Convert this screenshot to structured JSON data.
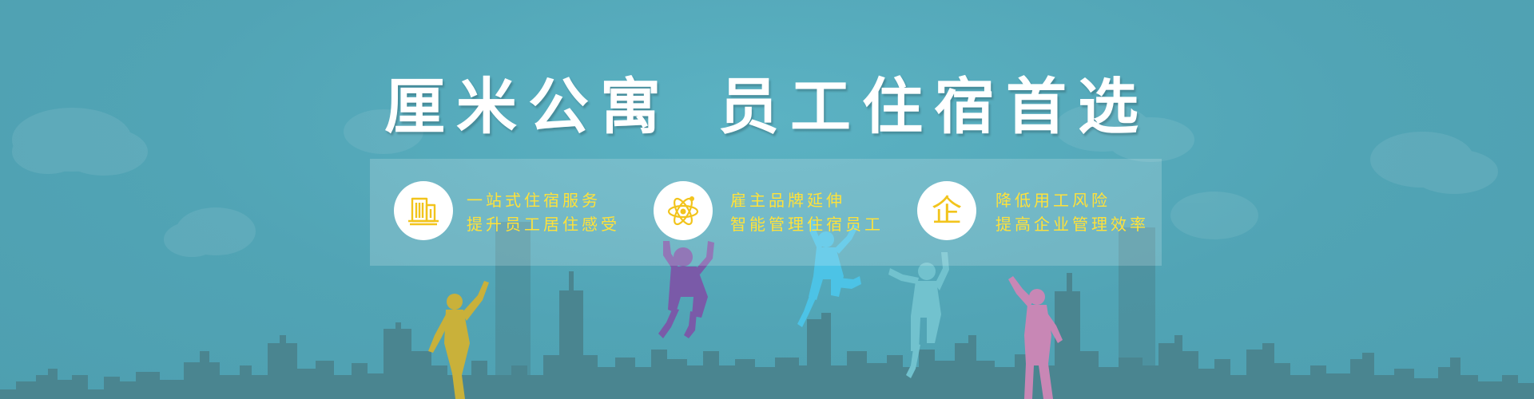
{
  "banner": {
    "headline": {
      "brand": "厘米公寓",
      "slogan": "员工住宿首选"
    },
    "features": [
      {
        "icon": "building-icon",
        "line1": "一站式住宿服务",
        "line2": "提升员工居住感受"
      },
      {
        "icon": "atom-icon",
        "line1": "雇主品牌延伸",
        "line2": "智能管理住宿员工"
      },
      {
        "icon": "enterprise-character-icon",
        "icon_char": "企",
        "line1": "降低用工风险",
        "line2": "提高企业管理效率"
      }
    ],
    "colors": {
      "background": "#55a8b9",
      "skyline": "#4a8590",
      "feature_text": "#ffe23a",
      "icon": "#f2c41c",
      "figure_yellow": "#c9b13a",
      "figure_purple": "#7a5aa8",
      "figure_blue": "#4cc3e6",
      "figure_teal": "#72c2ce",
      "figure_pink": "#c887b5"
    }
  }
}
